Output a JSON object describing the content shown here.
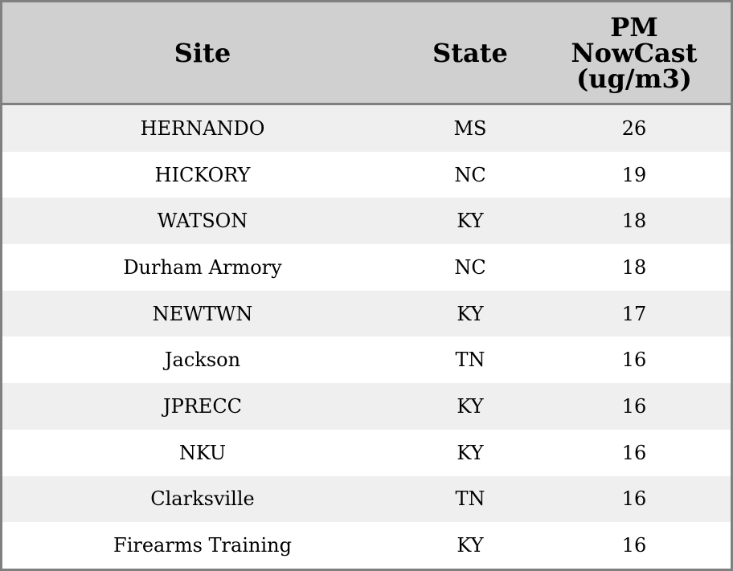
{
  "table": {
    "headers": [
      "Site",
      "State",
      "PM NowCast (ug/m3)"
    ],
    "header_lines": {
      "pm": [
        "PM",
        "NowCast",
        "(ug/m3)"
      ]
    },
    "rows": [
      {
        "site": "HERNANDO",
        "state": "MS",
        "pm": "26"
      },
      {
        "site": "HICKORY",
        "state": "NC",
        "pm": "19"
      },
      {
        "site": "WATSON",
        "state": "KY",
        "pm": "18"
      },
      {
        "site": "Durham Armory",
        "state": "NC",
        "pm": "18"
      },
      {
        "site": "NEWTWN",
        "state": "KY",
        "pm": "17"
      },
      {
        "site": "Jackson",
        "state": "TN",
        "pm": "16"
      },
      {
        "site": "JPRECC",
        "state": "KY",
        "pm": "16"
      },
      {
        "site": "NKU",
        "state": "KY",
        "pm": "16"
      },
      {
        "site": "Clarksville",
        "state": "TN",
        "pm": "16"
      },
      {
        "site": "Firearms Training",
        "state": "KY",
        "pm": "16"
      }
    ]
  },
  "colors": {
    "header_bg": "#d0d0d0",
    "stripe_bg": "#efefef",
    "border": "#808080"
  }
}
